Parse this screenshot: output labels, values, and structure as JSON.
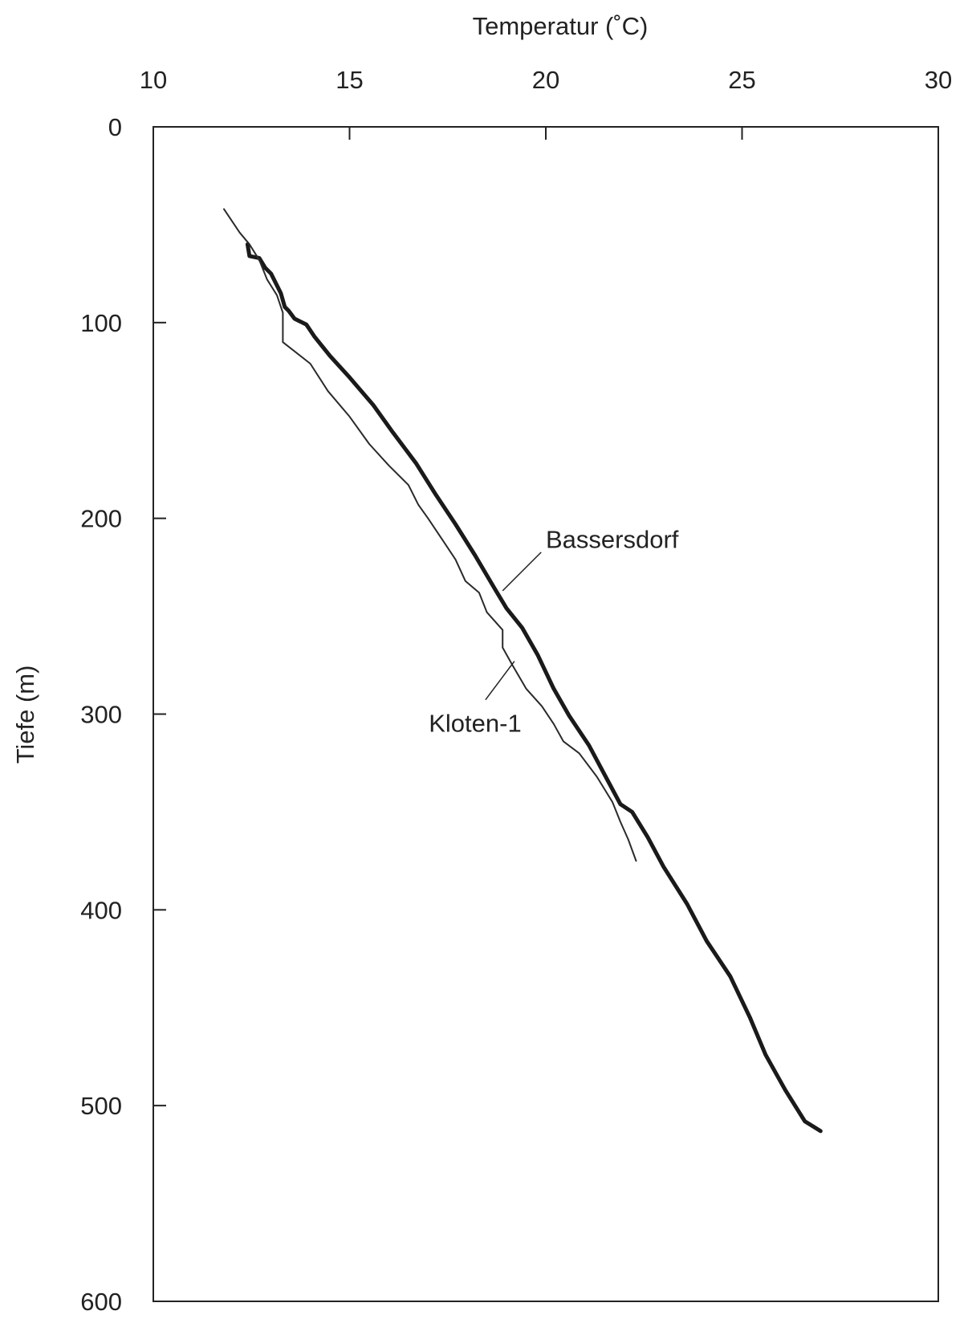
{
  "chart_data": {
    "type": "line",
    "title": "",
    "xlabel": "Temperatur (˚C)",
    "ylabel": "Tiefe (m)",
    "xlim": [
      10,
      30
    ],
    "ylim": [
      0,
      600
    ],
    "y_inverted": true,
    "x_axis_position": "top",
    "xticks": [
      10,
      15,
      20,
      25,
      30
    ],
    "xtick_labels": [
      "10",
      "15",
      "20",
      "25",
      "30"
    ],
    "yticks": [
      0,
      100,
      200,
      300,
      400,
      500,
      600
    ],
    "ytick_labels": [
      "0",
      "100",
      "200",
      "300",
      "400",
      "500",
      "600"
    ],
    "grid": false,
    "legend": "none",
    "series": [
      {
        "name": "Bassersdorf",
        "color": "#1a1a1a",
        "style": "thick",
        "points": [
          [
            12.4,
            60
          ],
          [
            12.45,
            66
          ],
          [
            12.7,
            67
          ],
          [
            12.85,
            72
          ],
          [
            13.0,
            75
          ],
          [
            13.25,
            85
          ],
          [
            13.35,
            92
          ],
          [
            13.45,
            94
          ],
          [
            13.6,
            98
          ],
          [
            13.9,
            101
          ],
          [
            14.1,
            107
          ],
          [
            14.5,
            117
          ],
          [
            15.0,
            128
          ],
          [
            15.6,
            142
          ],
          [
            16.1,
            156
          ],
          [
            16.7,
            172
          ],
          [
            17.2,
            188
          ],
          [
            17.7,
            203
          ],
          [
            18.2,
            219
          ],
          [
            18.7,
            236
          ],
          [
            19.0,
            246
          ],
          [
            19.4,
            256
          ],
          [
            19.8,
            270
          ],
          [
            20.2,
            287
          ],
          [
            20.6,
            301
          ],
          [
            21.1,
            316
          ],
          [
            21.5,
            331
          ],
          [
            21.9,
            346
          ],
          [
            22.2,
            350
          ],
          [
            22.6,
            363
          ],
          [
            23.0,
            378
          ],
          [
            23.6,
            397
          ],
          [
            24.1,
            416
          ],
          [
            24.7,
            434
          ],
          [
            25.2,
            455
          ],
          [
            25.6,
            474
          ],
          [
            26.1,
            492
          ],
          [
            26.6,
            508
          ],
          [
            27.0,
            513
          ]
        ]
      },
      {
        "name": "Kloten-1",
        "color": "#2a2a2a",
        "style": "thin",
        "points": [
          [
            11.8,
            42
          ],
          [
            12.2,
            54
          ],
          [
            12.45,
            60
          ],
          [
            12.7,
            68
          ],
          [
            12.9,
            78
          ],
          [
            13.15,
            86
          ],
          [
            13.3,
            95
          ],
          [
            13.3,
            110
          ],
          [
            14.0,
            121
          ],
          [
            14.45,
            135
          ],
          [
            15.0,
            148
          ],
          [
            15.5,
            162
          ],
          [
            16.0,
            173
          ],
          [
            16.5,
            183
          ],
          [
            16.75,
            193
          ],
          [
            17.0,
            200
          ],
          [
            17.4,
            212
          ],
          [
            17.7,
            221
          ],
          [
            17.95,
            232
          ],
          [
            18.3,
            238
          ],
          [
            18.5,
            248
          ],
          [
            18.9,
            257
          ],
          [
            18.9,
            266
          ],
          [
            19.15,
            275
          ],
          [
            19.5,
            287
          ],
          [
            19.9,
            296
          ],
          [
            20.2,
            305
          ],
          [
            20.45,
            314
          ],
          [
            20.85,
            320
          ],
          [
            21.3,
            332
          ],
          [
            21.7,
            345
          ],
          [
            21.9,
            355
          ],
          [
            22.1,
            364
          ],
          [
            22.3,
            375
          ]
        ]
      }
    ],
    "annotations": [
      {
        "text": "Bassersdorf",
        "series": "Bassersdorf",
        "at": [
          18.9,
          237
        ],
        "label_at": [
          20.0,
          211
        ]
      },
      {
        "text": "Kloten-1",
        "series": "Kloten-1",
        "at": [
          19.2,
          273
        ],
        "label_at": [
          18.2,
          305
        ]
      }
    ]
  }
}
